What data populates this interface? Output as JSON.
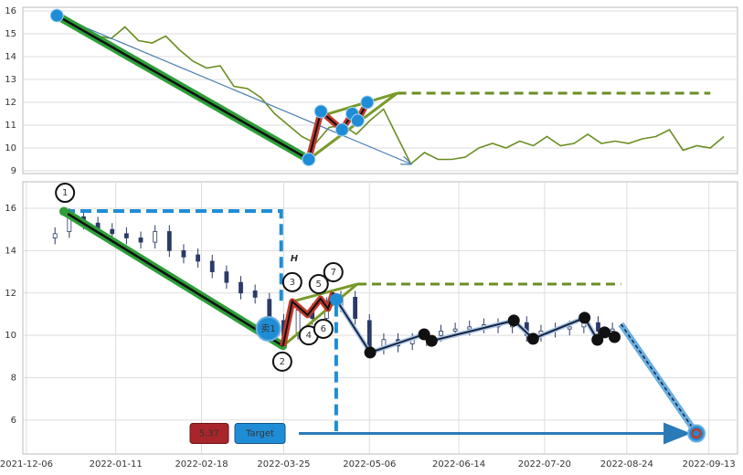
{
  "chart_data": [
    {
      "type": "line",
      "x": [
        0,
        2,
        4,
        6,
        8,
        10,
        12,
        14,
        16,
        18,
        20,
        22,
        24,
        26,
        28,
        30,
        32,
        34,
        36,
        38,
        40,
        42,
        44,
        46,
        48,
        50,
        52,
        54,
        56,
        58,
        60,
        62,
        64,
        66,
        68,
        70,
        72,
        74,
        76,
        78,
        80,
        82,
        84,
        86,
        88,
        90,
        92,
        94,
        96,
        98
      ],
      "values": [
        15.8,
        15.6,
        15.3,
        14.9,
        14.8,
        15.3,
        14.7,
        14.6,
        14.9,
        14.3,
        13.8,
        13.5,
        13.6,
        12.7,
        12.6,
        12.2,
        11.5,
        11.0,
        10.5,
        10.2,
        10.9,
        11.0,
        10.6,
        11.2,
        11.7,
        10.5,
        9.3,
        9.8,
        9.5,
        9.5,
        9.6,
        10.0,
        10.2,
        10.0,
        10.3,
        10.1,
        10.5,
        10.1,
        10.2,
        10.6,
        10.2,
        10.3,
        10.2,
        10.4,
        10.5,
        10.8,
        9.9,
        10.1,
        10.0,
        10.5
      ],
      "color": "#6b8e23",
      "xlim": [
        -5,
        100
      ],
      "ylim": [
        8.88,
        16.16
      ],
      "yticks": [
        9,
        10,
        11,
        12,
        13,
        14,
        15,
        16
      ],
      "grid": true,
      "trend_line": {
        "x": [
          0,
          37
        ],
        "y": [
          15.8,
          9.5
        ]
      },
      "projection_arrow": {
        "x": [
          0,
          52
        ],
        "y": [
          15.8,
          9.3
        ]
      },
      "zigzag": {
        "x": [
          37,
          38.8,
          41.9,
          43.4,
          44.2,
          45.6
        ],
        "y": [
          9.5,
          11.6,
          10.8,
          11.5,
          11.2,
          12.0
        ]
      },
      "wedge_upper": {
        "x": [
          38.8,
          50
        ],
        "y": [
          11.4,
          12.4
        ]
      },
      "wedge_lower": {
        "x": [
          37,
          50
        ],
        "y": [
          9.5,
          12.4
        ]
      },
      "breakout_level": {
        "x": [
          50,
          96
        ],
        "y": [
          12.4,
          12.4
        ]
      }
    },
    {
      "type": "candlestick",
      "x": [
        9,
        13,
        17,
        21,
        25,
        29,
        33,
        37,
        41,
        45,
        49,
        53,
        57,
        61,
        65,
        69,
        73,
        77,
        81,
        85,
        89,
        93,
        97,
        101,
        105,
        109,
        113,
        117,
        121,
        125,
        129,
        133,
        137,
        141,
        145,
        149,
        153,
        157,
        161,
        165
      ],
      "open": [
        14.6,
        14.9,
        15.6,
        15.3,
        15.0,
        14.8,
        14.6,
        14.4,
        14.9,
        14.0,
        13.8,
        13.5,
        13.0,
        12.5,
        12.1,
        11.7,
        10.7,
        10.1,
        11.2,
        10.8,
        11.4,
        11.8,
        10.7,
        9.4,
        9.8,
        9.6,
        9.8,
        10.0,
        10.2,
        10.3,
        10.4,
        10.5,
        10.4,
        10.6,
        10.0,
        10.2,
        10.3,
        10.4,
        10.6,
        10.2
      ],
      "high": [
        15.1,
        16.0,
        15.9,
        15.6,
        15.3,
        15.1,
        14.9,
        15.2,
        15.2,
        14.3,
        14.1,
        13.8,
        13.3,
        12.8,
        12.4,
        12.0,
        11.0,
        11.5,
        11.5,
        11.8,
        12.1,
        12.1,
        11.0,
        10.1,
        10.1,
        10.1,
        10.3,
        10.5,
        10.6,
        10.7,
        10.8,
        10.8,
        10.9,
        10.9,
        10.5,
        10.6,
        10.7,
        10.9,
        10.9,
        10.6
      ],
      "low": [
        14.3,
        14.6,
        15.0,
        14.7,
        14.5,
        14.3,
        14.1,
        14.1,
        13.7,
        13.4,
        13.2,
        12.7,
        12.2,
        11.7,
        11.5,
        10.5,
        9.7,
        9.8,
        10.5,
        10.5,
        11.1,
        10.5,
        9.0,
        9.1,
        9.2,
        9.3,
        9.5,
        9.7,
        9.9,
        10.0,
        10.1,
        10.1,
        10.1,
        9.7,
        9.7,
        9.9,
        10.0,
        10.1,
        9.9,
        9.9
      ],
      "close": [
        14.8,
        15.7,
        15.3,
        15.0,
        14.8,
        14.6,
        14.4,
        14.9,
        14.0,
        13.7,
        13.5,
        13.0,
        12.5,
        12.0,
        11.8,
        10.8,
        10.0,
        11.2,
        10.8,
        11.5,
        11.8,
        10.8,
        9.3,
        9.8,
        9.5,
        9.8,
        10.0,
        10.2,
        10.3,
        10.4,
        10.5,
        10.4,
        10.6,
        10.0,
        10.2,
        10.3,
        10.4,
        10.6,
        10.2,
        10.3
      ],
      "color": "#2b3a67",
      "xlim": [
        0,
        200
      ],
      "ylim": [
        4.4,
        17.25
      ],
      "yticks": [
        6,
        8,
        10,
        12,
        14,
        16
      ],
      "grid": true,
      "xticks": [
        {
          "value": 1,
          "label": "2021-12-06"
        },
        {
          "value": 26,
          "label": "2022-01-11"
        },
        {
          "value": 50,
          "label": "2022-02-18"
        },
        {
          "value": 73,
          "label": "2022-03-25"
        },
        {
          "value": 97,
          "label": "2022-05-06"
        },
        {
          "value": 122,
          "label": "2022-06-14"
        },
        {
          "value": 146,
          "label": "2022-07-20"
        },
        {
          "value": 169,
          "label": "2022-08-24"
        },
        {
          "value": 192,
          "label": "2022-09-13"
        }
      ],
      "trend_line": {
        "x": [
          11.5,
          72.8
        ],
        "y": [
          15.85,
          9.5
        ]
      },
      "zigzag": {
        "x": [
          72.8,
          75.4,
          79.7,
          83.3,
          85.4,
          86.9
        ],
        "y": [
          9.5,
          11.6,
          10.96,
          11.73,
          11.26,
          12.03
        ]
      },
      "wedge_upper": {
        "x": [
          75.4,
          93.6
        ],
        "y": [
          11.6,
          12.42
        ]
      },
      "wedge_lower": {
        "x": [
          72.8,
          93.6
        ],
        "y": [
          9.5,
          12.42
        ]
      },
      "breakout_level": {
        "x": [
          93.6,
          167.4
        ],
        "y": [
          12.42,
          12.42
        ]
      },
      "height_box": {
        "x": [
          11.5,
          72.3,
          72.3
        ],
        "y": [
          15.87,
          15.87,
          11.4
        ],
        "label": "H"
      },
      "drop_line": {
        "x": [
          87.7,
          87.7
        ],
        "y": [
          11.4,
          5.48
        ]
      },
      "after_path": {
        "x": [
          87.7,
          97.2,
          112.3,
          114.4,
          137.4,
          142.8,
          157.2,
          160.8,
          162.8,
          165.6
        ],
        "y": [
          11.69,
          9.19,
          10.05,
          9.74,
          10.7,
          9.84,
          10.83,
          9.79,
          10.14,
          9.92
        ]
      },
      "forecast_start": {
        "x": 167.4,
        "y": 10.53
      },
      "pivots": [
        {
          "text": "1",
          "x": 11.8,
          "y": 16.73
        },
        {
          "text": "2",
          "x": 72.6,
          "y": 8.76
        },
        {
          "text": "3",
          "x": 75.4,
          "y": 12.51
        },
        {
          "text": "4",
          "x": 80,
          "y": 10.0
        },
        {
          "text": "5",
          "x": 82.8,
          "y": 12.42
        },
        {
          "text": "6",
          "x": 84.1,
          "y": 10.31
        },
        {
          "text": "7",
          "x": 86.9,
          "y": 12.98
        }
      ],
      "sell_signal": {
        "text": "卖1",
        "x": 68.7,
        "y": 10.31
      },
      "target": {
        "value": 5.37,
        "label": "Target",
        "x": 188.5
      }
    }
  ]
}
